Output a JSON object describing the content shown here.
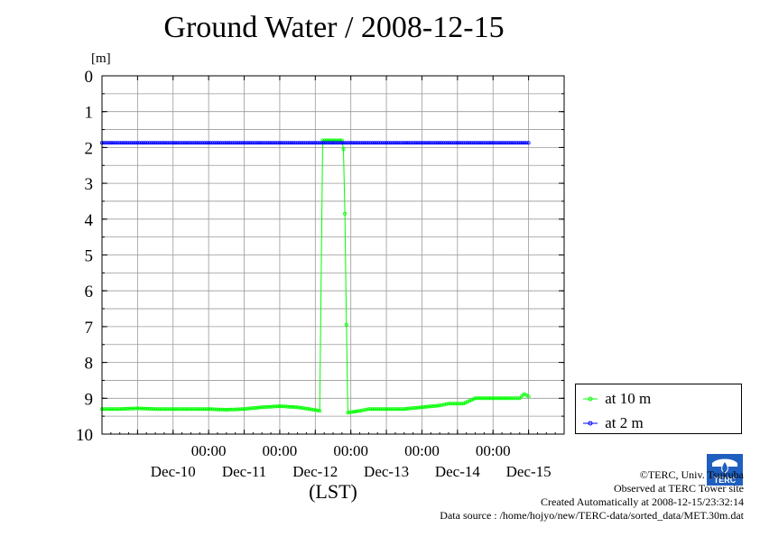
{
  "chart_data": {
    "type": "line",
    "title": "Ground Water / 2008-12-15",
    "ylabel": "[m]",
    "xlabel": "(LST)",
    "ylim": [
      0,
      10
    ],
    "y_inverted": true,
    "yticks": [
      0,
      1,
      2,
      3,
      4,
      5,
      6,
      7,
      8,
      9,
      10
    ],
    "x_time_labels": [
      "00:00",
      "00:00",
      "00:00",
      "00:00",
      "00:00"
    ],
    "x_date_labels": [
      "Dec-10",
      "Dec-11",
      "Dec-12",
      "Dec-13",
      "Dec-14",
      "Dec-15"
    ],
    "x_range_days": [
      "2008-12-09T12:00",
      "2008-12-15T24:00"
    ],
    "grid": true,
    "legend_position": "right",
    "series": [
      {
        "name": "at 10 m",
        "color": "#00ff00",
        "marker": "circle",
        "points": [
          [
            "2008-12-09T12:00",
            9.3
          ],
          [
            "2008-12-09T18:00",
            9.3
          ],
          [
            "2008-12-10T00:00",
            9.28
          ],
          [
            "2008-12-10T06:00",
            9.3
          ],
          [
            "2008-12-10T12:00",
            9.3
          ],
          [
            "2008-12-10T18:00",
            9.3
          ],
          [
            "2008-12-11T00:00",
            9.3
          ],
          [
            "2008-12-11T06:00",
            9.32
          ],
          [
            "2008-12-11T12:00",
            9.3
          ],
          [
            "2008-12-11T18:00",
            9.25
          ],
          [
            "2008-12-12T00:00",
            9.22
          ],
          [
            "2008-12-12T06:00",
            9.25
          ],
          [
            "2008-12-12T10:00",
            9.3
          ],
          [
            "2008-12-12T13:30",
            9.35
          ],
          [
            "2008-12-12T14:30",
            1.8
          ],
          [
            "2008-12-12T21:00",
            1.8
          ],
          [
            "2008-12-12T21:30",
            2.05
          ],
          [
            "2008-12-12T22:00",
            3.85
          ],
          [
            "2008-12-12T22:30",
            6.95
          ],
          [
            "2008-12-12T23:00",
            9.4
          ],
          [
            "2008-12-13T03:00",
            9.35
          ],
          [
            "2008-12-13T06:00",
            9.3
          ],
          [
            "2008-12-13T12:00",
            9.3
          ],
          [
            "2008-12-13T18:00",
            9.3
          ],
          [
            "2008-12-14T00:00",
            9.25
          ],
          [
            "2008-12-14T06:00",
            9.2
          ],
          [
            "2008-12-14T09:00",
            9.15
          ],
          [
            "2008-12-14T14:00",
            9.15
          ],
          [
            "2008-12-14T18:00",
            9.0
          ],
          [
            "2008-12-15T00:00",
            9.0
          ],
          [
            "2008-12-15T06:00",
            9.0
          ],
          [
            "2008-12-15T09:00",
            9.0
          ],
          [
            "2008-12-15T10:30",
            8.88
          ],
          [
            "2008-12-15T12:00",
            8.95
          ]
        ]
      },
      {
        "name": "at 2 m",
        "color": "#0000ff",
        "marker": "circle",
        "points": [
          [
            "2008-12-09T12:00",
            1.87
          ],
          [
            "2008-12-11T00:00",
            1.87
          ],
          [
            "2008-12-13T00:00",
            1.87
          ],
          [
            "2008-12-15T12:00",
            1.87
          ]
        ]
      }
    ]
  },
  "legend": {
    "items": [
      {
        "label": "at 10 m",
        "color": "#00ff00"
      },
      {
        "label": "at 2 m",
        "color": "#0000ff"
      }
    ]
  },
  "credits": {
    "line1": "©TERC, Univ. Tsukuba",
    "line2": "Observed at TERC Tower site",
    "line3": "Created Automatically at 2008-12-15/23:32:14",
    "line4": "Data source : /home/hojyo/new/TERC-data/sorted_data/MET.30m.dat"
  },
  "logo": {
    "text": "TERC",
    "color": "#1f5fbf"
  }
}
